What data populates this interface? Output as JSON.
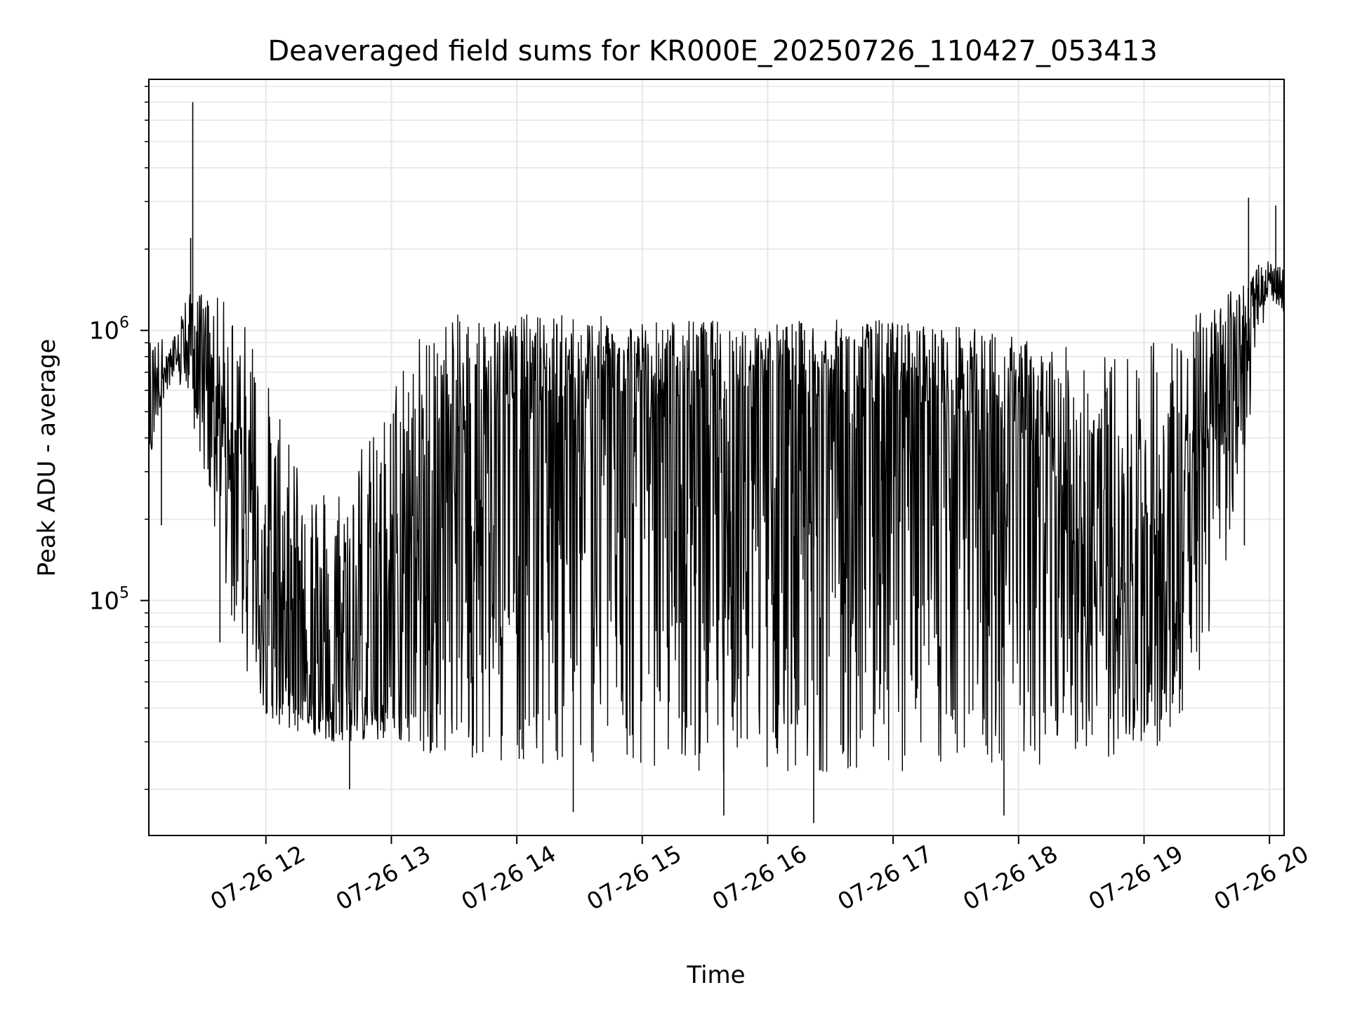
{
  "chart_data": {
    "type": "line",
    "title": "Deaveraged field sums for KR000E_20250726_110427_053413",
    "xlabel": "Time",
    "ylabel": "Peak ADU - average",
    "y_scale": "log",
    "x_range": [
      "2025-07-26 11:04",
      "2025-07-26 20:07"
    ],
    "ylim": [
      13500,
      8500000
    ],
    "grid": true,
    "line_color": "#000000",
    "x_ticks": [
      {
        "t": "2025-07-26 12:00",
        "label": "07-26 12"
      },
      {
        "t": "2025-07-26 13:00",
        "label": "07-26 13"
      },
      {
        "t": "2025-07-26 14:00",
        "label": "07-26 14"
      },
      {
        "t": "2025-07-26 15:00",
        "label": "07-26 15"
      },
      {
        "t": "2025-07-26 16:00",
        "label": "07-26 16"
      },
      {
        "t": "2025-07-26 17:00",
        "label": "07-26 17"
      },
      {
        "t": "2025-07-26 18:00",
        "label": "07-26 18"
      },
      {
        "t": "2025-07-26 19:00",
        "label": "07-26 19"
      },
      {
        "t": "2025-07-26 20:00",
        "label": "07-26 20"
      }
    ],
    "y_ticks": [
      {
        "value": 100000,
        "base": "10",
        "exp": "5"
      },
      {
        "value": 1000000,
        "base": "10",
        "exp": "6"
      }
    ],
    "series": [
      {
        "envelope": {
          "x": [
            "2025-07-26 11:04",
            "2025-07-26 11:10",
            "2025-07-26 11:15",
            "2025-07-26 11:20",
            "2025-07-26 11:25",
            "2025-07-26 11:30",
            "2025-07-26 11:35",
            "2025-07-26 11:40",
            "2025-07-26 11:45",
            "2025-07-26 11:50",
            "2025-07-26 11:55",
            "2025-07-26 12:00",
            "2025-07-26 12:05",
            "2025-07-26 12:10",
            "2025-07-26 12:15",
            "2025-07-26 12:20",
            "2025-07-26 12:25",
            "2025-07-26 12:30",
            "2025-07-26 12:35",
            "2025-07-26 12:40",
            "2025-07-26 12:45",
            "2025-07-26 12:50",
            "2025-07-26 12:55",
            "2025-07-26 13:00",
            "2025-07-26 13:10",
            "2025-07-26 13:20",
            "2025-07-26 13:30",
            "2025-07-26 13:40",
            "2025-07-26 13:50",
            "2025-07-26 14:00",
            "2025-07-26 14:30",
            "2025-07-26 15:00",
            "2025-07-26 15:30",
            "2025-07-26 16:00",
            "2025-07-26 16:30",
            "2025-07-26 17:00",
            "2025-07-26 17:30",
            "2025-07-26 17:45",
            "2025-07-26 18:00",
            "2025-07-26 18:15",
            "2025-07-26 18:30",
            "2025-07-26 18:45",
            "2025-07-26 19:00",
            "2025-07-26 19:10",
            "2025-07-26 19:20",
            "2025-07-26 19:30",
            "2025-07-26 19:40",
            "2025-07-26 19:50",
            "2025-07-26 19:55",
            "2025-07-26 20:00",
            "2025-07-26 20:07"
          ],
          "high": [
            1000000,
            950000,
            900000,
            1300000,
            1400000,
            1400000,
            1350000,
            1300000,
            1250000,
            1100000,
            900000,
            700000,
            500000,
            420000,
            380000,
            350000,
            300000,
            280000,
            300000,
            350000,
            400000,
            420000,
            450000,
            700000,
            1000000,
            1100000,
            1150000,
            1150000,
            1150000,
            1150000,
            1150000,
            1100000,
            1100000,
            1080000,
            1100000,
            1100000,
            1050000,
            1000000,
            950000,
            900000,
            850000,
            850000,
            900000,
            1000000,
            1100000,
            1250000,
            1400000,
            1600000,
            1800000,
            1800000,
            1700000
          ],
          "mid": [
            400000,
            650000,
            700000,
            900000,
            800000,
            700000,
            600000,
            450000,
            300000,
            180000,
            120000,
            80000,
            60000,
            52000,
            48000,
            45000,
            42000,
            40000,
            40000,
            42000,
            42000,
            44000,
            45000,
            48000,
            60000,
            120000,
            300000,
            500000,
            520000,
            540000,
            560000,
            560000,
            560000,
            560000,
            540000,
            540000,
            520000,
            480000,
            400000,
            250000,
            130000,
            80000,
            60000,
            60000,
            150000,
            400000,
            800000,
            1100000,
            1350000,
            1400000,
            1350000
          ],
          "low": [
            300000,
            550000,
            600000,
            600000,
            450000,
            300000,
            170000,
            100000,
            75000,
            55000,
            45000,
            38000,
            35000,
            33000,
            32000,
            32000,
            31000,
            30000,
            30000,
            30000,
            30000,
            30000,
            30000,
            30000,
            28000,
            27000,
            27000,
            26000,
            25000,
            25000,
            24000,
            24000,
            23000,
            23000,
            23000,
            23000,
            23000,
            23000,
            24000,
            25000,
            26000,
            26000,
            27000,
            30000,
            40000,
            60000,
            150000,
            400000,
            1000000,
            1150000,
            1150000
          ]
        }
      }
    ],
    "spikes": [
      {
        "t": "2025-07-26 11:25",
        "value": 7000000
      },
      {
        "t": "2025-07-26 11:38",
        "value": 70000
      },
      {
        "t": "2025-07-26 11:24",
        "value": 2200000
      },
      {
        "t": "2025-07-26 11:10",
        "value": 190000
      },
      {
        "t": "2025-07-26 12:40",
        "value": 20000
      },
      {
        "t": "2025-07-26 14:27",
        "value": 16500
      },
      {
        "t": "2025-07-26 15:39",
        "value": 16000
      },
      {
        "t": "2025-07-26 16:22",
        "value": 15000
      },
      {
        "t": "2025-07-26 17:53",
        "value": 16000
      },
      {
        "t": "2025-07-26 19:50",
        "value": 3100000
      },
      {
        "t": "2025-07-26 20:03",
        "value": 2900000
      },
      {
        "t": "2025-07-26 19:48",
        "value": 160000
      }
    ]
  }
}
